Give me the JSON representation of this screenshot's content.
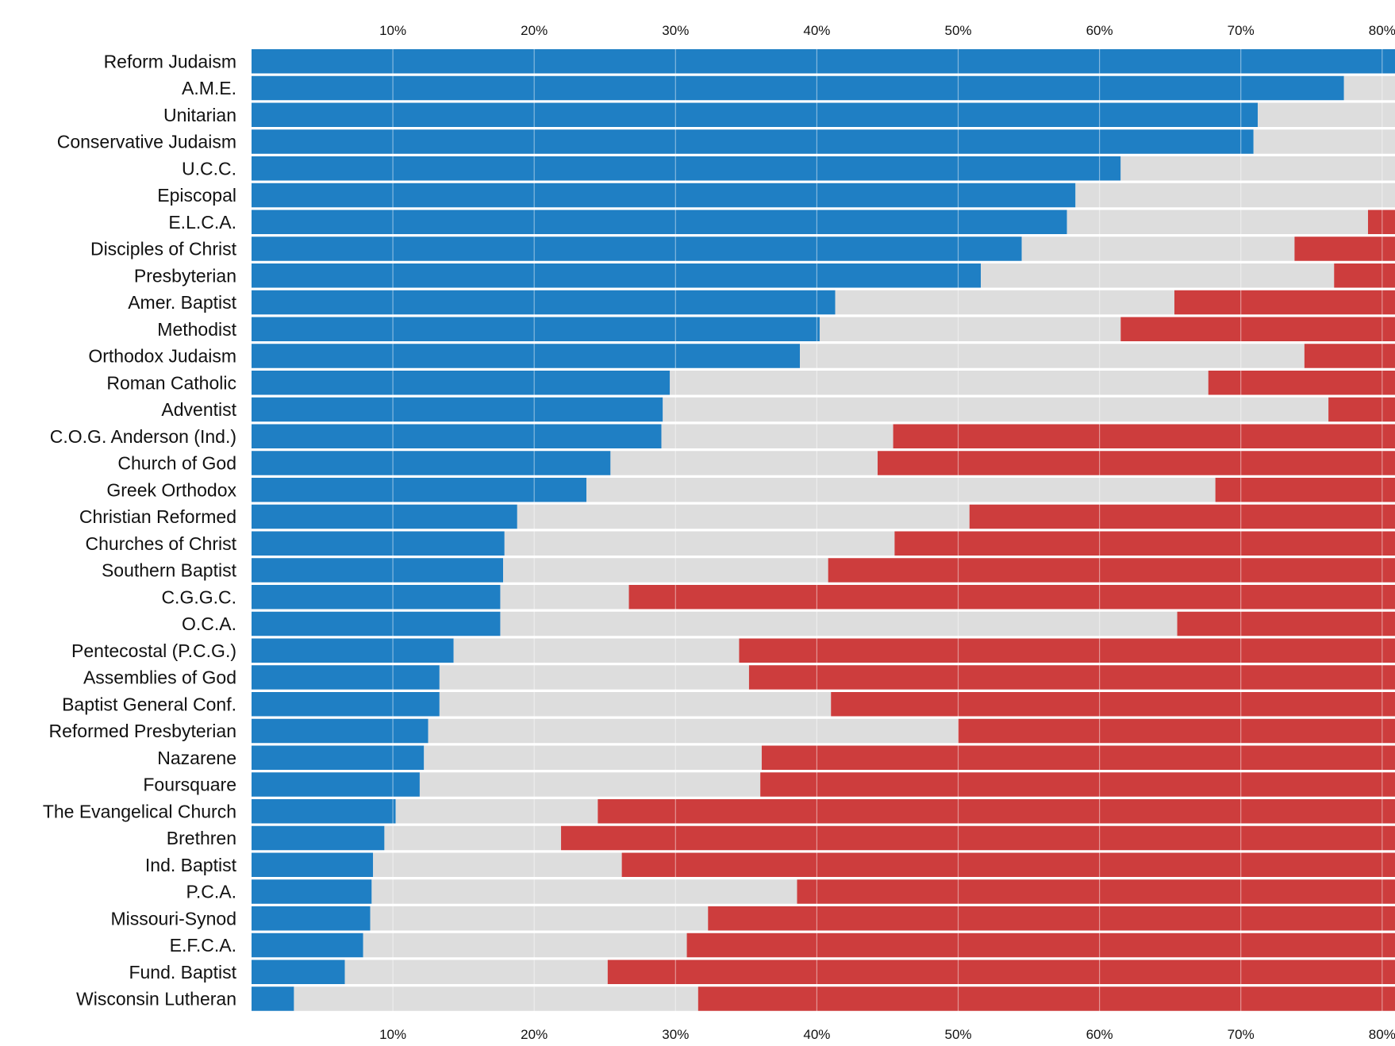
{
  "chart_data": {
    "type": "bar",
    "stacked": true,
    "orientation": "horizontal",
    "xlim": [
      0,
      81
    ],
    "x_ticks": [
      "10%",
      "20%",
      "30%",
      "40%",
      "50%",
      "60%",
      "70%",
      "80%"
    ],
    "x_tick_values": [
      10,
      20,
      30,
      40,
      50,
      60,
      70,
      80
    ],
    "grid": true,
    "categories": [
      "Reform Judaism",
      "A.M.E.",
      "Unitarian",
      "Conservative Judaism",
      "U.C.C.",
      "Episcopal",
      "E.L.C.A.",
      "Disciples of Christ",
      "Presbyterian",
      "Amer. Baptist",
      "Methodist",
      "Orthodox Judaism",
      "Roman Catholic",
      "Adventist",
      "C.O.G. Anderson (Ind.)",
      "Church of God",
      "Greek Orthodox",
      "Christian Reformed",
      "Churches of Christ",
      "Southern Baptist",
      "C.G.G.C.",
      "O.C.A.",
      "Pentecostal (P.C.G.)",
      "Assemblies of God",
      "Baptist General Conf.",
      "Reformed Presbyterian",
      "Nazarene",
      "Foursquare",
      "The Evangelical Church",
      "Brethren",
      "Ind. Baptist",
      "P.C.A.",
      "Missouri-Synod",
      "E.F.C.A.",
      "Fund. Baptist",
      "Wisconsin Lutheran"
    ],
    "series": [
      {
        "color": "#1f7fc4",
        "values": [
          81,
          77.3,
          71.2,
          70.9,
          61.5,
          58.3,
          57.7,
          54.5,
          51.6,
          41.3,
          40.2,
          38.8,
          29.6,
          29.1,
          29.0,
          25.4,
          23.7,
          18.8,
          17.9,
          17.8,
          17.6,
          17.6,
          14.3,
          13.3,
          13.3,
          12.5,
          12.2,
          11.9,
          10.2,
          9.4,
          8.6,
          8.5,
          8.4,
          7.9,
          6.6,
          3.0
        ]
      },
      {
        "color": "#dddddd",
        "values": [
          0,
          3.7,
          9.8,
          10.1,
          19.5,
          22.7,
          21.3,
          19.3,
          25.0,
          24.0,
          21.3,
          35.7,
          38.1,
          47.1,
          16.4,
          18.9,
          44.5,
          32.0,
          27.6,
          23.0,
          9.1,
          47.9,
          20.2,
          21.9,
          27.7,
          37.5,
          23.9,
          24.1,
          14.3,
          12.5,
          17.6,
          30.1,
          23.9,
          22.9,
          18.6,
          28.6
        ]
      },
      {
        "color": "#cd3d3d",
        "values": [
          0,
          0,
          0,
          0,
          0,
          0,
          2.0,
          7.2,
          4.4,
          15.7,
          19.5,
          6.5,
          13.3,
          4.8,
          35.6,
          36.7,
          12.8,
          30.2,
          35.5,
          40.2,
          54.3,
          15.5,
          46.5,
          45.8,
          40.0,
          31.0,
          44.9,
          45.0,
          56.5,
          59.1,
          54.8,
          42.4,
          48.7,
          50.2,
          55.8,
          49.4
        ]
      }
    ]
  }
}
